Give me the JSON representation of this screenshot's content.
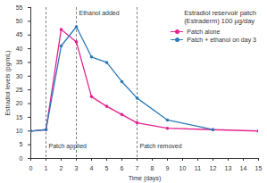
{
  "chart_data": {
    "type": "line",
    "title": "Estradiol reservoir patch\n(Estraderm) 100 µg/day",
    "x_label": "Time (days)",
    "y_label": "Estradiol levels (pg/mL)",
    "x": [
      0,
      1,
      2,
      3,
      4,
      5,
      6,
      7,
      9,
      12,
      15
    ],
    "series": [
      {
        "name": "Patch alone",
        "color": "#e5228f",
        "marker": "circle",
        "values": [
          10,
          10.5,
          47,
          42.5,
          22.5,
          19,
          16,
          13,
          11,
          10.5,
          10
        ]
      },
      {
        "name": "Patch + ethanol on day 3",
        "color": "#2a7ab8",
        "marker": "circle",
        "values": [
          10,
          10.5,
          41,
          48,
          37,
          35,
          28,
          22,
          14,
          10.5,
          null
        ]
      }
    ],
    "annotations": [
      {
        "x": 1,
        "label": "Patch applied"
      },
      {
        "x": 3,
        "label": "Ethanol added"
      },
      {
        "x": 7,
        "label": "Patch removed"
      }
    ],
    "xlim": [
      0,
      15
    ],
    "xticks": [
      0,
      1,
      2,
      3,
      4,
      5,
      6,
      7,
      8,
      9,
      10,
      11,
      12,
      13,
      14,
      15
    ],
    "ylim": [
      0,
      55
    ],
    "yticks": [
      0,
      5,
      10,
      15,
      20,
      25,
      30,
      35,
      40,
      45,
      50,
      55
    ],
    "grid": false,
    "legend": "upper right"
  }
}
